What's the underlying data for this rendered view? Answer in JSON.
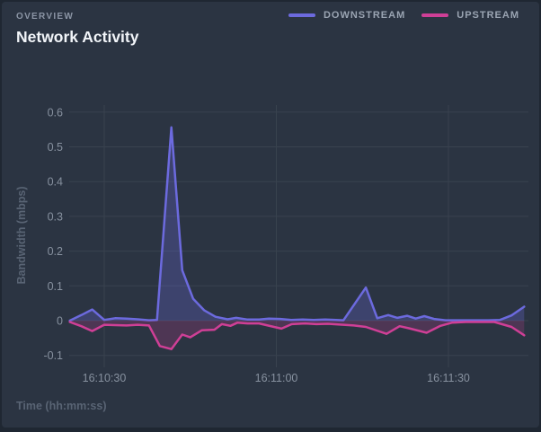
{
  "header": {
    "eyebrow": "OVERVIEW",
    "title": "Network Activity"
  },
  "colors": {
    "background": "#2b3442",
    "grid": "#39424f",
    "downstream": "#6c6ade",
    "upstream": "#cf3f96",
    "downstream_fill": "rgba(108,106,222,0.28)",
    "upstream_fill": "rgba(207,63,150,0.22)"
  },
  "chart_data": {
    "type": "area",
    "title": "Network Activity",
    "xlabel": "Time (hh:mm:ss)",
    "ylabel": "Bandwidth (mbps)",
    "ylim": [
      -0.1,
      0.6
    ],
    "y_ticks": [
      0.6,
      0.5,
      0.4,
      0.3,
      0.2,
      0.1,
      0,
      -0.1
    ],
    "x_ticks": [
      {
        "t": 6,
        "label": "16:10:30"
      },
      {
        "t": 36,
        "label": "16:11:00"
      },
      {
        "t": 66,
        "label": "16:11:30"
      }
    ],
    "grid": true,
    "legend_position": "top-right",
    "x_unit": "seconds from 16:10:24",
    "series": [
      {
        "name": "DOWNSTREAM",
        "color": "#6c6ade",
        "fill": "rgba(108,106,222,0.28)",
        "points": [
          [
            0,
            0
          ],
          [
            2,
            0.016
          ],
          [
            3.9,
            0.032
          ],
          [
            6,
            0.002
          ],
          [
            7.9,
            0.007
          ],
          [
            9.9,
            0.006
          ],
          [
            11.8,
            0.004
          ],
          [
            13.8,
            0.001
          ],
          [
            15.2,
            0.002
          ],
          [
            17.7,
            0.556
          ],
          [
            19.6,
            0.145
          ],
          [
            21.5,
            0.063
          ],
          [
            23.4,
            0.03
          ],
          [
            25.4,
            0.011
          ],
          [
            27.5,
            0.004
          ],
          [
            29,
            0.008
          ],
          [
            31,
            0.003
          ],
          [
            33,
            0.003
          ],
          [
            34.7,
            0.006
          ],
          [
            36.7,
            0.005
          ],
          [
            38.6,
            0.002
          ],
          [
            40.6,
            0.003
          ],
          [
            42.5,
            0.002
          ],
          [
            44.5,
            0.003
          ],
          [
            46.4,
            0.002
          ],
          [
            47.7,
            0.001
          ],
          [
            51.6,
            0.095
          ],
          [
            53.6,
            0.007
          ],
          [
            55.5,
            0.016
          ],
          [
            57.1,
            0.008
          ],
          [
            58.8,
            0.014
          ],
          [
            60.3,
            0.006
          ],
          [
            61.8,
            0.013
          ],
          [
            63.5,
            0.005
          ],
          [
            65.5,
            0.001
          ],
          [
            68,
            0.001
          ],
          [
            70.5,
            0.001
          ],
          [
            72.9,
            0.001
          ],
          [
            75,
            0.002
          ],
          [
            77,
            0.015
          ],
          [
            79.2,
            0.04
          ]
        ]
      },
      {
        "name": "UPSTREAM",
        "color": "#cf3f96",
        "fill": "rgba(207,63,150,0.22)",
        "points": [
          [
            0,
            -0.004
          ],
          [
            2,
            -0.016
          ],
          [
            3.9,
            -0.03
          ],
          [
            6,
            -0.012
          ],
          [
            7.9,
            -0.013
          ],
          [
            9.9,
            -0.014
          ],
          [
            11.8,
            -0.012
          ],
          [
            13.8,
            -0.014
          ],
          [
            15.7,
            -0.073
          ],
          [
            17.7,
            -0.082
          ],
          [
            19.6,
            -0.04
          ],
          [
            21,
            -0.048
          ],
          [
            23,
            -0.028
          ],
          [
            25.2,
            -0.026
          ],
          [
            26.5,
            -0.01
          ],
          [
            28,
            -0.015
          ],
          [
            29.2,
            -0.006
          ],
          [
            31,
            -0.008
          ],
          [
            33,
            -0.008
          ],
          [
            35.6,
            -0.018
          ],
          [
            36.9,
            -0.023
          ],
          [
            38.7,
            -0.01
          ],
          [
            41,
            -0.008
          ],
          [
            43,
            -0.01
          ],
          [
            45,
            -0.009
          ],
          [
            47.7,
            -0.012
          ],
          [
            49.5,
            -0.014
          ],
          [
            51.6,
            -0.018
          ],
          [
            55.2,
            -0.038
          ],
          [
            57.5,
            -0.016
          ],
          [
            59.1,
            -0.022
          ],
          [
            62.2,
            -0.035
          ],
          [
            64.6,
            -0.015
          ],
          [
            66.6,
            -0.006
          ],
          [
            69,
            -0.004
          ],
          [
            71.5,
            -0.004
          ],
          [
            74,
            -0.004
          ],
          [
            77,
            -0.018
          ],
          [
            79.2,
            -0.042
          ]
        ]
      }
    ]
  }
}
